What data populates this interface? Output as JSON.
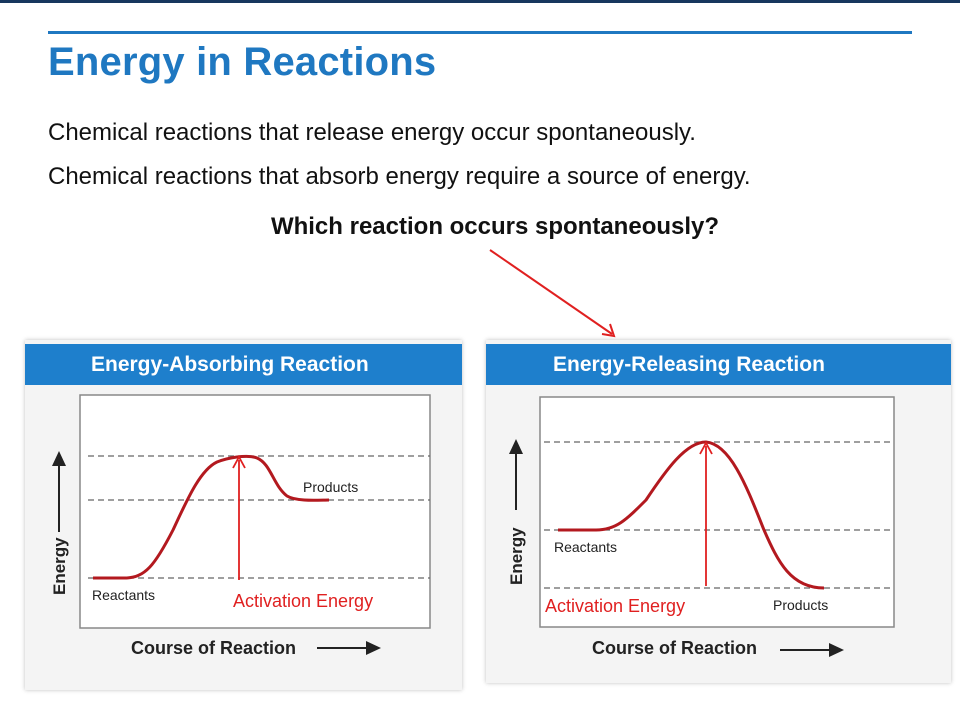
{
  "slide": {
    "title": "Energy in Reactions",
    "lines": [
      "Chemical reactions that release energy occur spontaneously.",
      "Chemical reactions that absorb energy require a source of energy."
    ],
    "question": "Which reaction occurs spontaneously?"
  },
  "diagrams": {
    "absorbing": {
      "title": "Energy-Absorbing Reaction",
      "y_axis_label": "Energy",
      "x_axis_label": "Course of Reaction",
      "reactants_label": "Reactants",
      "products_label": "Products",
      "activation_label": "Activation Energy"
    },
    "releasing": {
      "title": "Energy-Releasing Reaction",
      "y_axis_label": "Energy",
      "x_axis_label": "Course of Reaction",
      "reactants_label": "Reactants",
      "products_label": "Products",
      "activation_label": "Activation Energy"
    }
  },
  "colors": {
    "title_blue": "#1f78c1",
    "header_blue": "#1e7fcc",
    "curve_red": "#b3191f",
    "arrow_red": "#e02020"
  }
}
